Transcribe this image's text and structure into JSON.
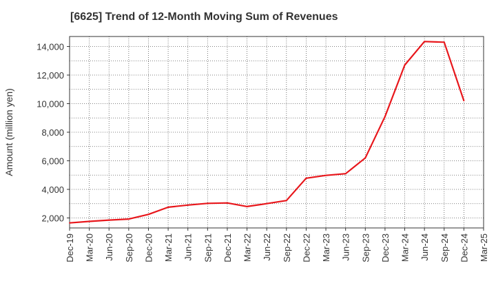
{
  "chart_data": {
    "type": "line",
    "title": "[6625]  Trend of 12-Month Moving Sum of Revenues",
    "xlabel": "",
    "ylabel": "Amount (million yen)",
    "ylim": [
      1300,
      14700
    ],
    "yticks": [
      2000,
      4000,
      6000,
      8000,
      10000,
      12000,
      14000
    ],
    "ytick_labels": [
      "2,000",
      "4,000",
      "6,000",
      "8,000",
      "10,000",
      "12,000",
      "14,000"
    ],
    "x_tick_labels": [
      "Dec-19",
      "Mar-20",
      "Jun-20",
      "Sep-20",
      "Dec-20",
      "Mar-21",
      "Jun-21",
      "Sep-21",
      "Dec-21",
      "Mar-22",
      "Jun-22",
      "Sep-22",
      "Dec-22",
      "Mar-23",
      "Jun-23",
      "Sep-23",
      "Dec-23",
      "Mar-24",
      "Jun-24",
      "Sep-24",
      "Dec-24",
      "Mar-25"
    ],
    "series": [
      {
        "color": "#e8161b",
        "x": [
          "Dec-19",
          "Mar-20",
          "Jun-20",
          "Sep-20",
          "Dec-20",
          "Mar-21",
          "Jun-21",
          "Sep-21",
          "Dec-21",
          "Mar-22",
          "Jun-22",
          "Sep-22",
          "Dec-22",
          "Mar-23",
          "Jun-23",
          "Sep-23",
          "Dec-23",
          "Mar-24",
          "Jun-24",
          "Sep-24",
          "Dec-24"
        ],
        "values": [
          1650,
          1760,
          1850,
          1920,
          2250,
          2750,
          2900,
          3020,
          3050,
          2800,
          3000,
          3220,
          4780,
          4980,
          5100,
          6200,
          9100,
          12700,
          14350,
          14300,
          10200
        ]
      }
    ],
    "grid": true,
    "grid_style": "dotted",
    "legend": "none"
  }
}
